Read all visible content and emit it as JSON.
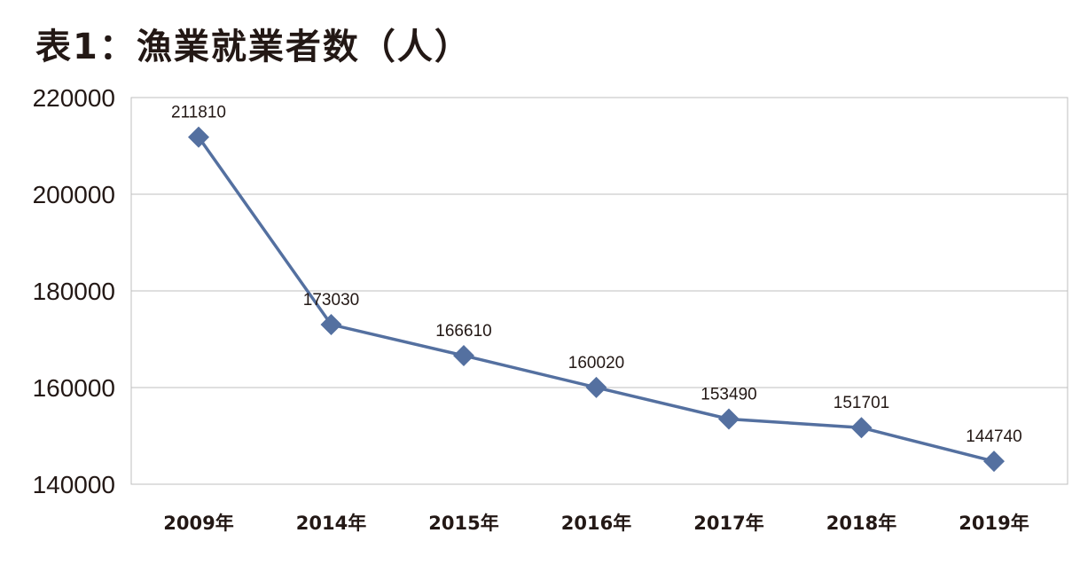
{
  "chart_data": {
    "type": "line",
    "title": "表1：漁業就業者数（人）",
    "categories": [
      "2009年",
      "2014年",
      "2015年",
      "2016年",
      "2017年",
      "2018年",
      "2019年"
    ],
    "series": [
      {
        "values": [
          211810,
          173030,
          166610,
          160020,
          153490,
          151701,
          144740
        ]
      }
    ],
    "ylim": [
      140000,
      220000
    ],
    "yticks": [
      220000,
      200000,
      180000,
      160000,
      140000
    ],
    "grid": true,
    "legend": "none",
    "line_color": "#5470a0",
    "marker": "diamond"
  }
}
